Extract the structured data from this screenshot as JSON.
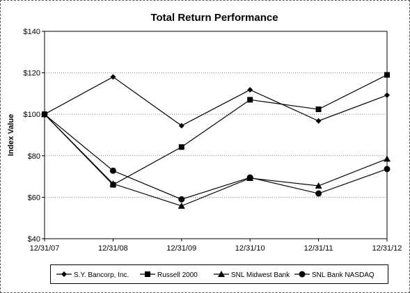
{
  "chart_data": {
    "type": "line",
    "title": "Total Return Performance",
    "xlabel": "",
    "ylabel": "Index Value",
    "ylim": [
      40,
      140
    ],
    "y_ticks": [
      40,
      60,
      80,
      100,
      120,
      140
    ],
    "y_tick_labels": [
      "$40",
      "$60",
      "$80",
      "$100",
      "$120",
      "$140"
    ],
    "categories": [
      "12/31/07",
      "12/31/08",
      "12/31/09",
      "12/31/10",
      "12/31/11",
      "12/31/12"
    ],
    "grid": "horizontal-dotted",
    "legend_placement": "bottom",
    "series": [
      {
        "name": "S.Y. Bancorp, Inc.",
        "marker": "diamond",
        "values": [
          100,
          118,
          94.5,
          111.8,
          96.8,
          109.2
        ]
      },
      {
        "name": "Russell 2000",
        "marker": "square",
        "values": [
          100,
          66,
          84.2,
          107,
          102.4,
          119
        ]
      },
      {
        "name": "SNL Midwest Bank",
        "marker": "triangle",
        "values": [
          100,
          66.5,
          55.8,
          69.2,
          65.5,
          78.5
        ]
      },
      {
        "name": "SNL Bank NASDAQ",
        "marker": "circle",
        "values": [
          100,
          72.8,
          59,
          69.5,
          61.8,
          73.6
        ]
      }
    ]
  },
  "colors": {
    "line": "#000000",
    "grid": "#808080",
    "background": "#ffffff"
  }
}
